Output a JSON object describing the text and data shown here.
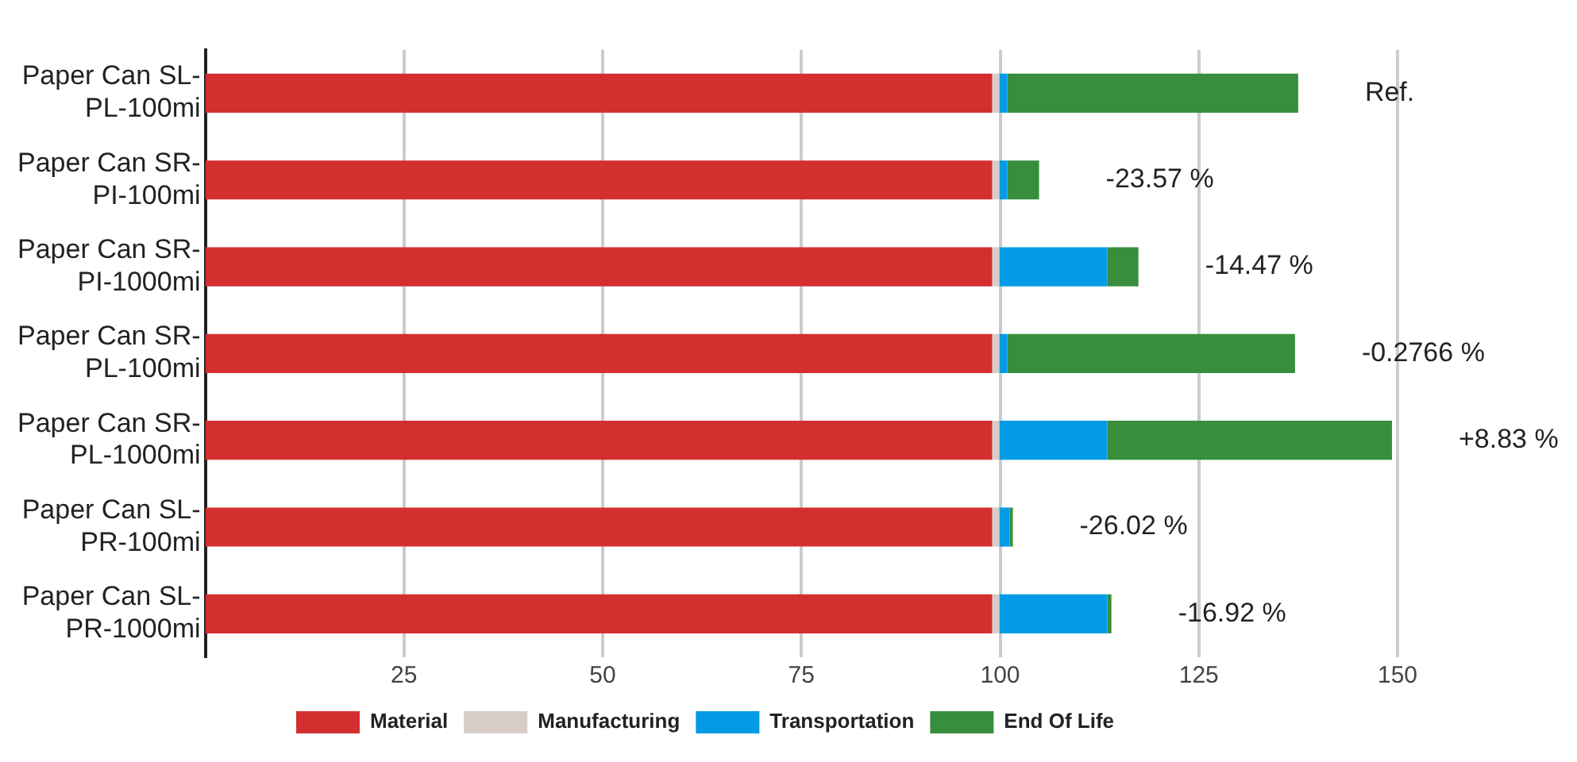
{
  "chart_data": {
    "type": "bar",
    "orientation": "horizontal",
    "stacked": true,
    "categories": [
      "Paper Can SL-PL-100mi",
      "Paper Can SR-PI-100mi",
      "Paper Can SR-PI-1000mi",
      "Paper Can SR-PL-100mi",
      "Paper Can SR-PL-1000mi",
      "Paper Can SL-PR-100mi",
      "Paper Can SL-PR-1000mi"
    ],
    "series": [
      {
        "name": "Material",
        "color": "#d32f2f",
        "values": [
          99,
          99,
          99,
          99,
          99,
          99,
          99
        ]
      },
      {
        "name": "Manufacturing",
        "color": "#d7ccc8",
        "values": [
          0.9,
          0.9,
          0.9,
          0.9,
          0.9,
          0.9,
          0.9
        ]
      },
      {
        "name": "Transportation",
        "color": "#039be5",
        "values": [
          1,
          1,
          13.6,
          1,
          13.6,
          1.3,
          13.6
        ]
      },
      {
        "name": "End Of Life",
        "color": "#388e3c",
        "values": [
          36.6,
          4,
          3.9,
          36.2,
          35.8,
          0.4,
          0.5
        ]
      }
    ],
    "xlim": [
      0,
      150
    ],
    "xticks": [
      25,
      50,
      75,
      100,
      125,
      150
    ],
    "grid": "x",
    "legend": "bottom",
    "annotations": [
      "Ref.",
      "-23.57 %",
      "-14.47 %",
      "-0.2766 %",
      "+8.83 %",
      "-26.02 %",
      "-16.92 %"
    ]
  }
}
